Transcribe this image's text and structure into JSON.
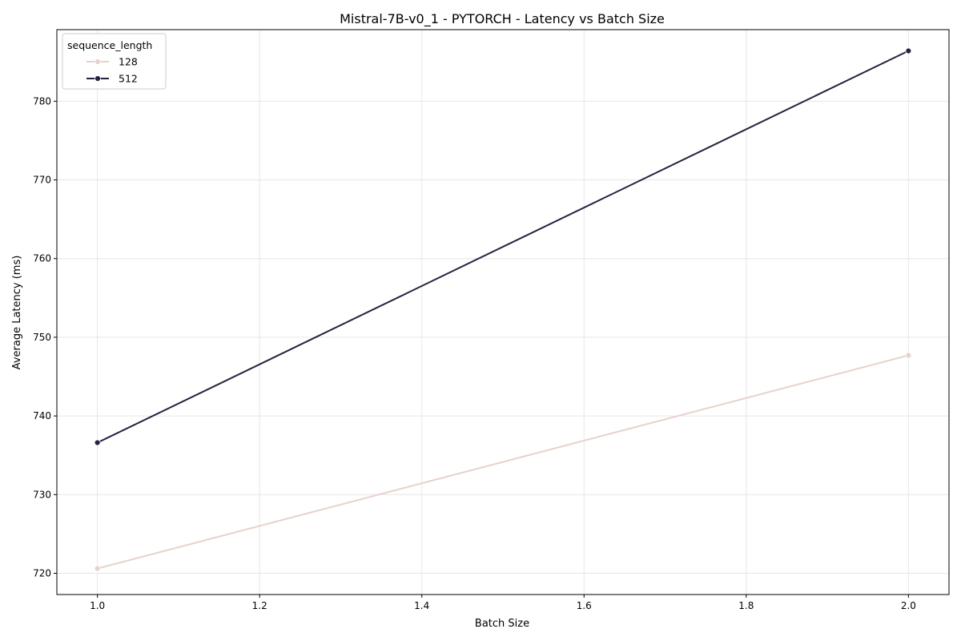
{
  "chart_data": {
    "type": "line",
    "title": "Mistral-7B-v0_1 - PYTORCH - Latency vs Batch Size",
    "xlabel": "Batch Size",
    "ylabel": "Average Latency (ms)",
    "xlim": [
      0.95,
      2.05
    ],
    "ylim": [
      717.3,
      789.1
    ],
    "xticks": [
      1.0,
      1.2,
      1.4,
      1.6,
      1.8,
      2.0
    ],
    "xtick_labels": [
      "1.0",
      "1.2",
      "1.4",
      "1.6",
      "1.8",
      "2.0"
    ],
    "yticks": [
      720,
      730,
      740,
      750,
      760,
      770,
      780
    ],
    "ytick_labels": [
      "720",
      "730",
      "740",
      "750",
      "760",
      "770",
      "780"
    ],
    "grid": true,
    "legend": {
      "title": "sequence_length",
      "placement": "top-left"
    },
    "series": [
      {
        "name": "128",
        "color": "#e8d2cc",
        "x": [
          1.0,
          2.0
        ],
        "values": [
          720.6,
          747.7
        ]
      },
      {
        "name": "512",
        "color": "#2b1f40",
        "x": [
          1.0,
          2.0
        ],
        "values": [
          736.6,
          786.4
        ]
      }
    ]
  }
}
